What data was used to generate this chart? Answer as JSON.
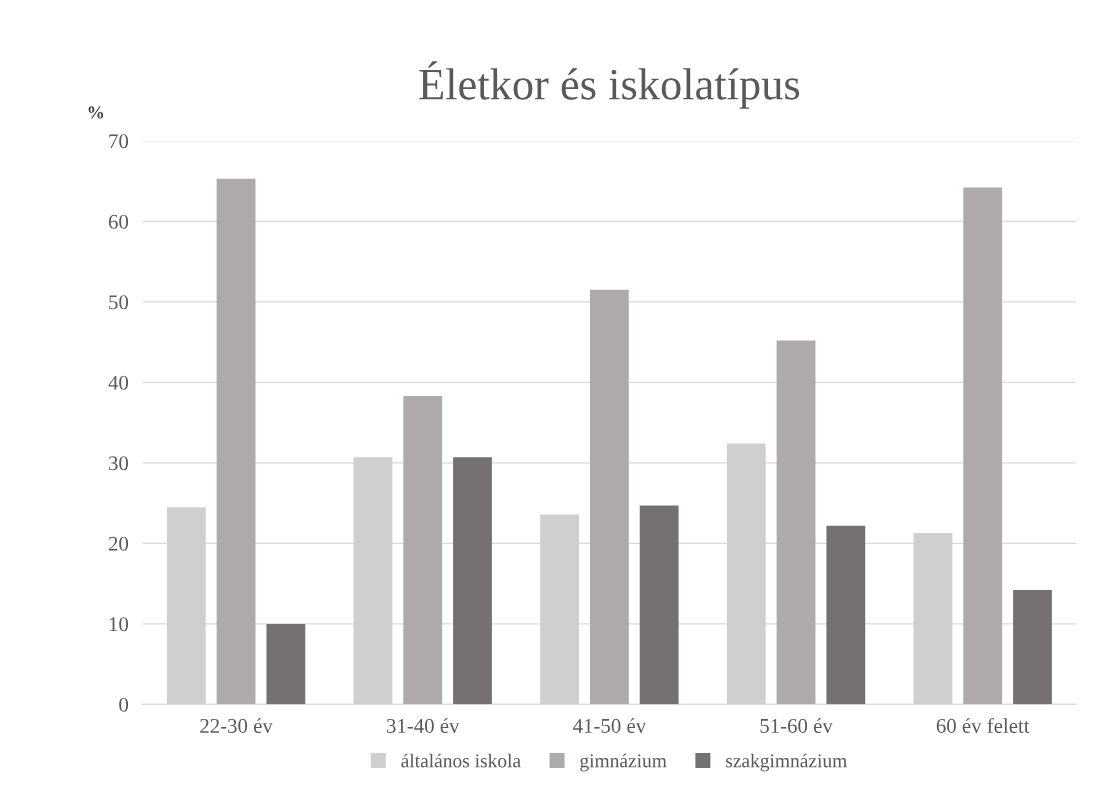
{
  "chart_data": {
    "type": "bar",
    "title": "Életkor és iskolatípus",
    "ylabel": "%",
    "categories": [
      "22-30 év",
      "31-40 év",
      "41-50 év",
      "51-60 év",
      "60 év felett"
    ],
    "series": [
      {
        "name": "általános iskola",
        "color": "#d0cece",
        "values": [
          24.5,
          30.7,
          23.6,
          32.4,
          21.3
        ]
      },
      {
        "name": "gimnázium",
        "color": "#aeaaaa",
        "values": [
          65.3,
          38.3,
          51.5,
          45.2,
          64.2
        ]
      },
      {
        "name": "szakgimnázium",
        "color": "#757171",
        "values": [
          10.0,
          30.7,
          24.7,
          22.2,
          14.2
        ]
      }
    ],
    "ylim": [
      0,
      70
    ],
    "yticks": [
      0,
      10,
      20,
      30,
      40,
      50,
      60,
      70
    ],
    "grid": "y",
    "legend": "bottom"
  }
}
